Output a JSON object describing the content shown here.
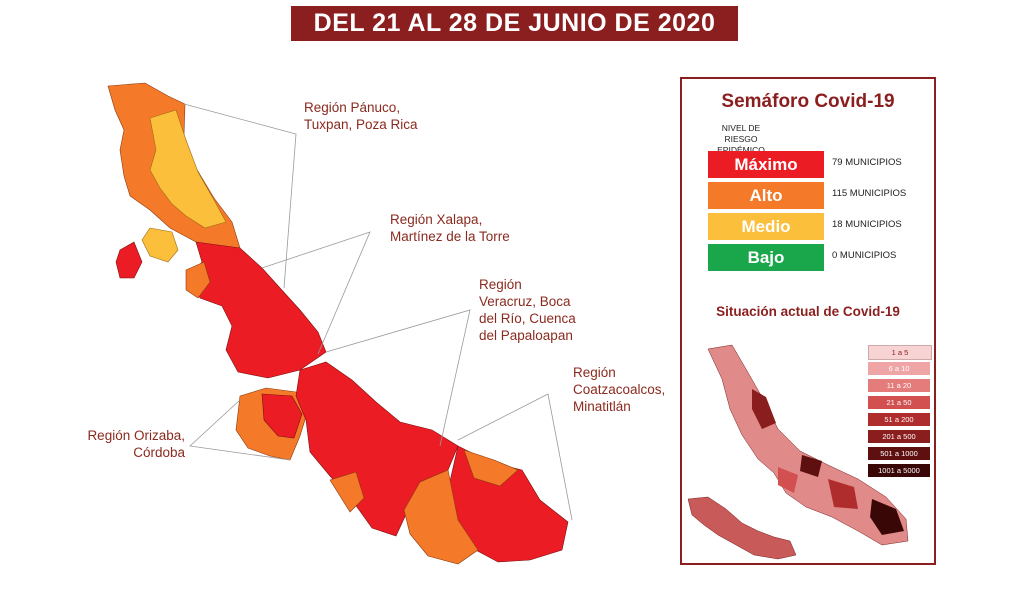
{
  "header": {
    "title": "DEL 21 AL 28 DE JUNIO DE 2020"
  },
  "regions": [
    {
      "line1": "Región Pánuco,",
      "line2": "Tuxpan, Poza Rica"
    },
    {
      "line1": "Región Xalapa,",
      "line2": "Martínez de la Torre"
    },
    {
      "line1": "Región",
      "line2": "Veracruz, Boca",
      "line3": "del Río, Cuenca",
      "line4": "del Papaloapan"
    },
    {
      "line1": "Región",
      "line2": "Coatzacoalcos,",
      "line3": "Minatitlán"
    },
    {
      "line1": "Región Orizaba,",
      "line2": "Córdoba"
    }
  ],
  "panel": {
    "title": "Semáforo Covid-19",
    "risk_label_line1": "NIVEL DE RIESGO",
    "risk_label_line2": "EPIDÉMICO",
    "levels": [
      {
        "name": "Máximo",
        "count": "79 MUNICIPIOS",
        "color": "#ec1c24"
      },
      {
        "name": "Alto",
        "count": "115 MUNICIPIOS",
        "color": "#f47a2a"
      },
      {
        "name": "Medio",
        "count": "18 MUNICIPIOS",
        "color": "#fbbf3c"
      },
      {
        "name": "Bajo",
        "count": "0 MUNICIPIOS",
        "color": "#1aa64b"
      }
    ],
    "situation_title": "Situación actual de Covid-19",
    "legend": [
      {
        "label": "1 a 5",
        "color": "#f7d3d3"
      },
      {
        "label": "6 a 10",
        "color": "#efa5a5"
      },
      {
        "label": "11 a 20",
        "color": "#e47c7c"
      },
      {
        "label": "21 a 50",
        "color": "#d35050"
      },
      {
        "label": "51 a 200",
        "color": "#b02d2d"
      },
      {
        "label": "201 a 500",
        "color": "#8a1d1d"
      },
      {
        "label": "501 a 1000",
        "color": "#5e1010"
      },
      {
        "label": "1001 a 5000",
        "color": "#3a0707"
      }
    ]
  },
  "map_colors": {
    "maximo": "#ec1c24",
    "alto": "#f47a2a",
    "medio": "#fbbf3c"
  }
}
